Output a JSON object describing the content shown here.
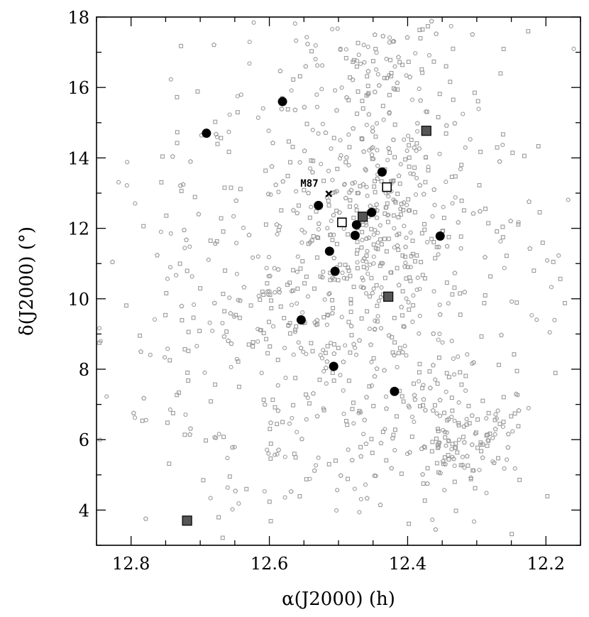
{
  "chart_data": {
    "type": "scatter",
    "title": "",
    "xlabel": "α(J2000) (h)",
    "ylabel": "δ(J2000) (°)",
    "xlim": [
      12.85,
      12.15
    ],
    "ylim": [
      3.0,
      18.0
    ],
    "x_inverted": true,
    "x_ticks": [
      12.8,
      12.6,
      12.4,
      12.2
    ],
    "x_tick_labels": [
      "12.8",
      "12.6",
      "12.4",
      "12.2"
    ],
    "y_ticks": [
      4,
      6,
      8,
      10,
      12,
      14,
      16,
      18
    ],
    "y_tick_labels": [
      "4",
      "6",
      "8",
      "10",
      "12",
      "14",
      "16",
      "18"
    ],
    "grid": false,
    "background_color": "#9a9a9a",
    "series": [
      {
        "marker": "filled-circle",
        "color": "#000000",
        "x": [
          12.581,
          12.691,
          12.529,
          12.437,
          12.452,
          12.474,
          12.476,
          12.513,
          12.505,
          12.554,
          12.353,
          12.507,
          12.419
        ],
        "y": [
          15.6,
          14.7,
          12.65,
          13.6,
          12.45,
          12.1,
          11.8,
          11.35,
          10.78,
          9.4,
          11.78,
          8.08,
          7.37
        ]
      },
      {
        "marker": "open-square",
        "color": "#000000",
        "x": [
          12.43,
          12.495
        ],
        "y": [
          13.17,
          12.17
        ]
      },
      {
        "marker": "gray-square",
        "color": "#555555",
        "x": [
          12.373,
          12.465,
          12.428,
          12.719
        ],
        "y": [
          14.77,
          12.33,
          10.06,
          3.7
        ]
      }
    ],
    "annotations": [
      {
        "text": "M87",
        "x": 12.514,
        "y": 12.98,
        "marker": "x-mark"
      }
    ]
  }
}
